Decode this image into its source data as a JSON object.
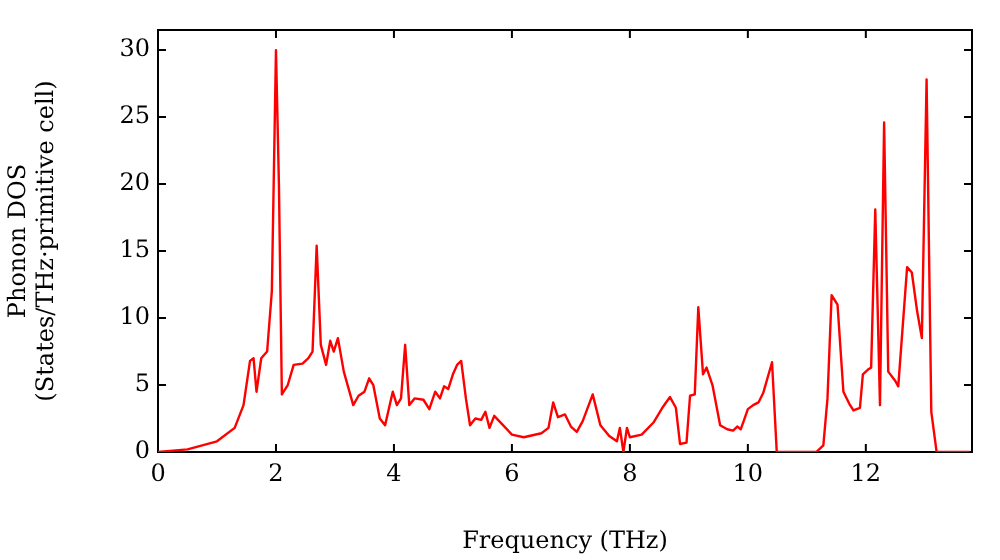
{
  "chart_data": {
    "type": "line",
    "xlabel": "Frequency (THz)",
    "ylabel": "Phonon DOS\n(States/THz·primitive cell)",
    "xlim": [
      0,
      13.8
    ],
    "ylim": [
      0,
      31.5
    ],
    "xticks": [
      0,
      2,
      4,
      6,
      8,
      10,
      12
    ],
    "yticks": [
      0,
      5,
      10,
      15,
      20,
      25,
      30
    ],
    "grid": false,
    "legend": false,
    "marker": "none",
    "line_style": "solid",
    "series": [
      {
        "color": "#ff0000",
        "x": [
          0,
          0.5,
          1,
          1.3,
          1.45,
          1.56,
          1.62,
          1.67,
          1.75,
          1.85,
          1.93,
          2.0,
          2.05,
          2.1,
          2.2,
          2.3,
          2.45,
          2.55,
          2.62,
          2.69,
          2.76,
          2.85,
          2.92,
          2.98,
          3.05,
          3.15,
          3.31,
          3.4,
          3.5,
          3.58,
          3.65,
          3.76,
          3.85,
          3.98,
          4.05,
          4.12,
          4.19,
          4.26,
          4.35,
          4.5,
          4.6,
          4.7,
          4.78,
          4.85,
          4.92,
          5.0,
          5.07,
          5.14,
          5.22,
          5.29,
          5.38,
          5.48,
          5.55,
          5.62,
          5.7,
          6.0,
          6.2,
          6.5,
          6.62,
          6.7,
          6.78,
          6.9,
          7.0,
          7.1,
          7.2,
          7.37,
          7.5,
          7.65,
          7.78,
          7.83,
          7.89,
          7.95,
          8.0,
          8.2,
          8.4,
          8.55,
          8.68,
          8.78,
          8.85,
          8.96,
          9.02,
          9.1,
          9.16,
          9.24,
          9.3,
          9.4,
          9.53,
          9.65,
          9.75,
          9.82,
          9.88,
          9.92,
          10.0,
          10.09,
          10.18,
          10.26,
          10.41,
          10.49,
          11.16,
          11.28,
          11.35,
          11.42,
          11.52,
          11.62,
          11.72,
          11.79,
          11.9,
          11.95,
          12.05,
          12.09,
          12.16,
          12.24,
          12.31,
          12.38,
          12.5,
          12.55,
          12.7,
          12.78,
          12.87,
          12.95,
          13.03,
          13.11,
          13.2,
          13.76
        ],
        "values": [
          0,
          0.2,
          0.8,
          1.8,
          3.5,
          6.8,
          7,
          4.5,
          7,
          7.5,
          12,
          30,
          20,
          4.3,
          5,
          6.5,
          6.6,
          7,
          7.5,
          15.4,
          8,
          6.5,
          8.3,
          7.5,
          8.5,
          6,
          3.5,
          4.2,
          4.5,
          5.5,
          5,
          2.5,
          2,
          4.5,
          3.5,
          4,
          8,
          3.5,
          4,
          3.9,
          3.2,
          4.5,
          4,
          4.9,
          4.7,
          5.8,
          6.5,
          6.8,
          4,
          2,
          2.5,
          2.4,
          3,
          1.8,
          2.7,
          1.3,
          1.1,
          1.4,
          1.8,
          3.7,
          2.6,
          2.8,
          1.9,
          1.5,
          2.3,
          4.3,
          2,
          1.2,
          0.8,
          1.8,
          0,
          1.8,
          1.1,
          1.3,
          2.2,
          3.3,
          4.1,
          3.3,
          0.6,
          0.7,
          4.2,
          4.3,
          10.8,
          5.8,
          6.3,
          5,
          2,
          1.7,
          1.6,
          1.9,
          1.7,
          2.2,
          3.2,
          3.5,
          3.7,
          4.4,
          6.7,
          0,
          0,
          0.5,
          4,
          11.7,
          11,
          4.5,
          3.6,
          3.1,
          3.3,
          5.8,
          6.2,
          6.3,
          18.1,
          3.5,
          24.6,
          6,
          5.3,
          4.9,
          13.8,
          13.4,
          10.5,
          8.5,
          27.8,
          3,
          0,
          0
        ]
      }
    ]
  }
}
